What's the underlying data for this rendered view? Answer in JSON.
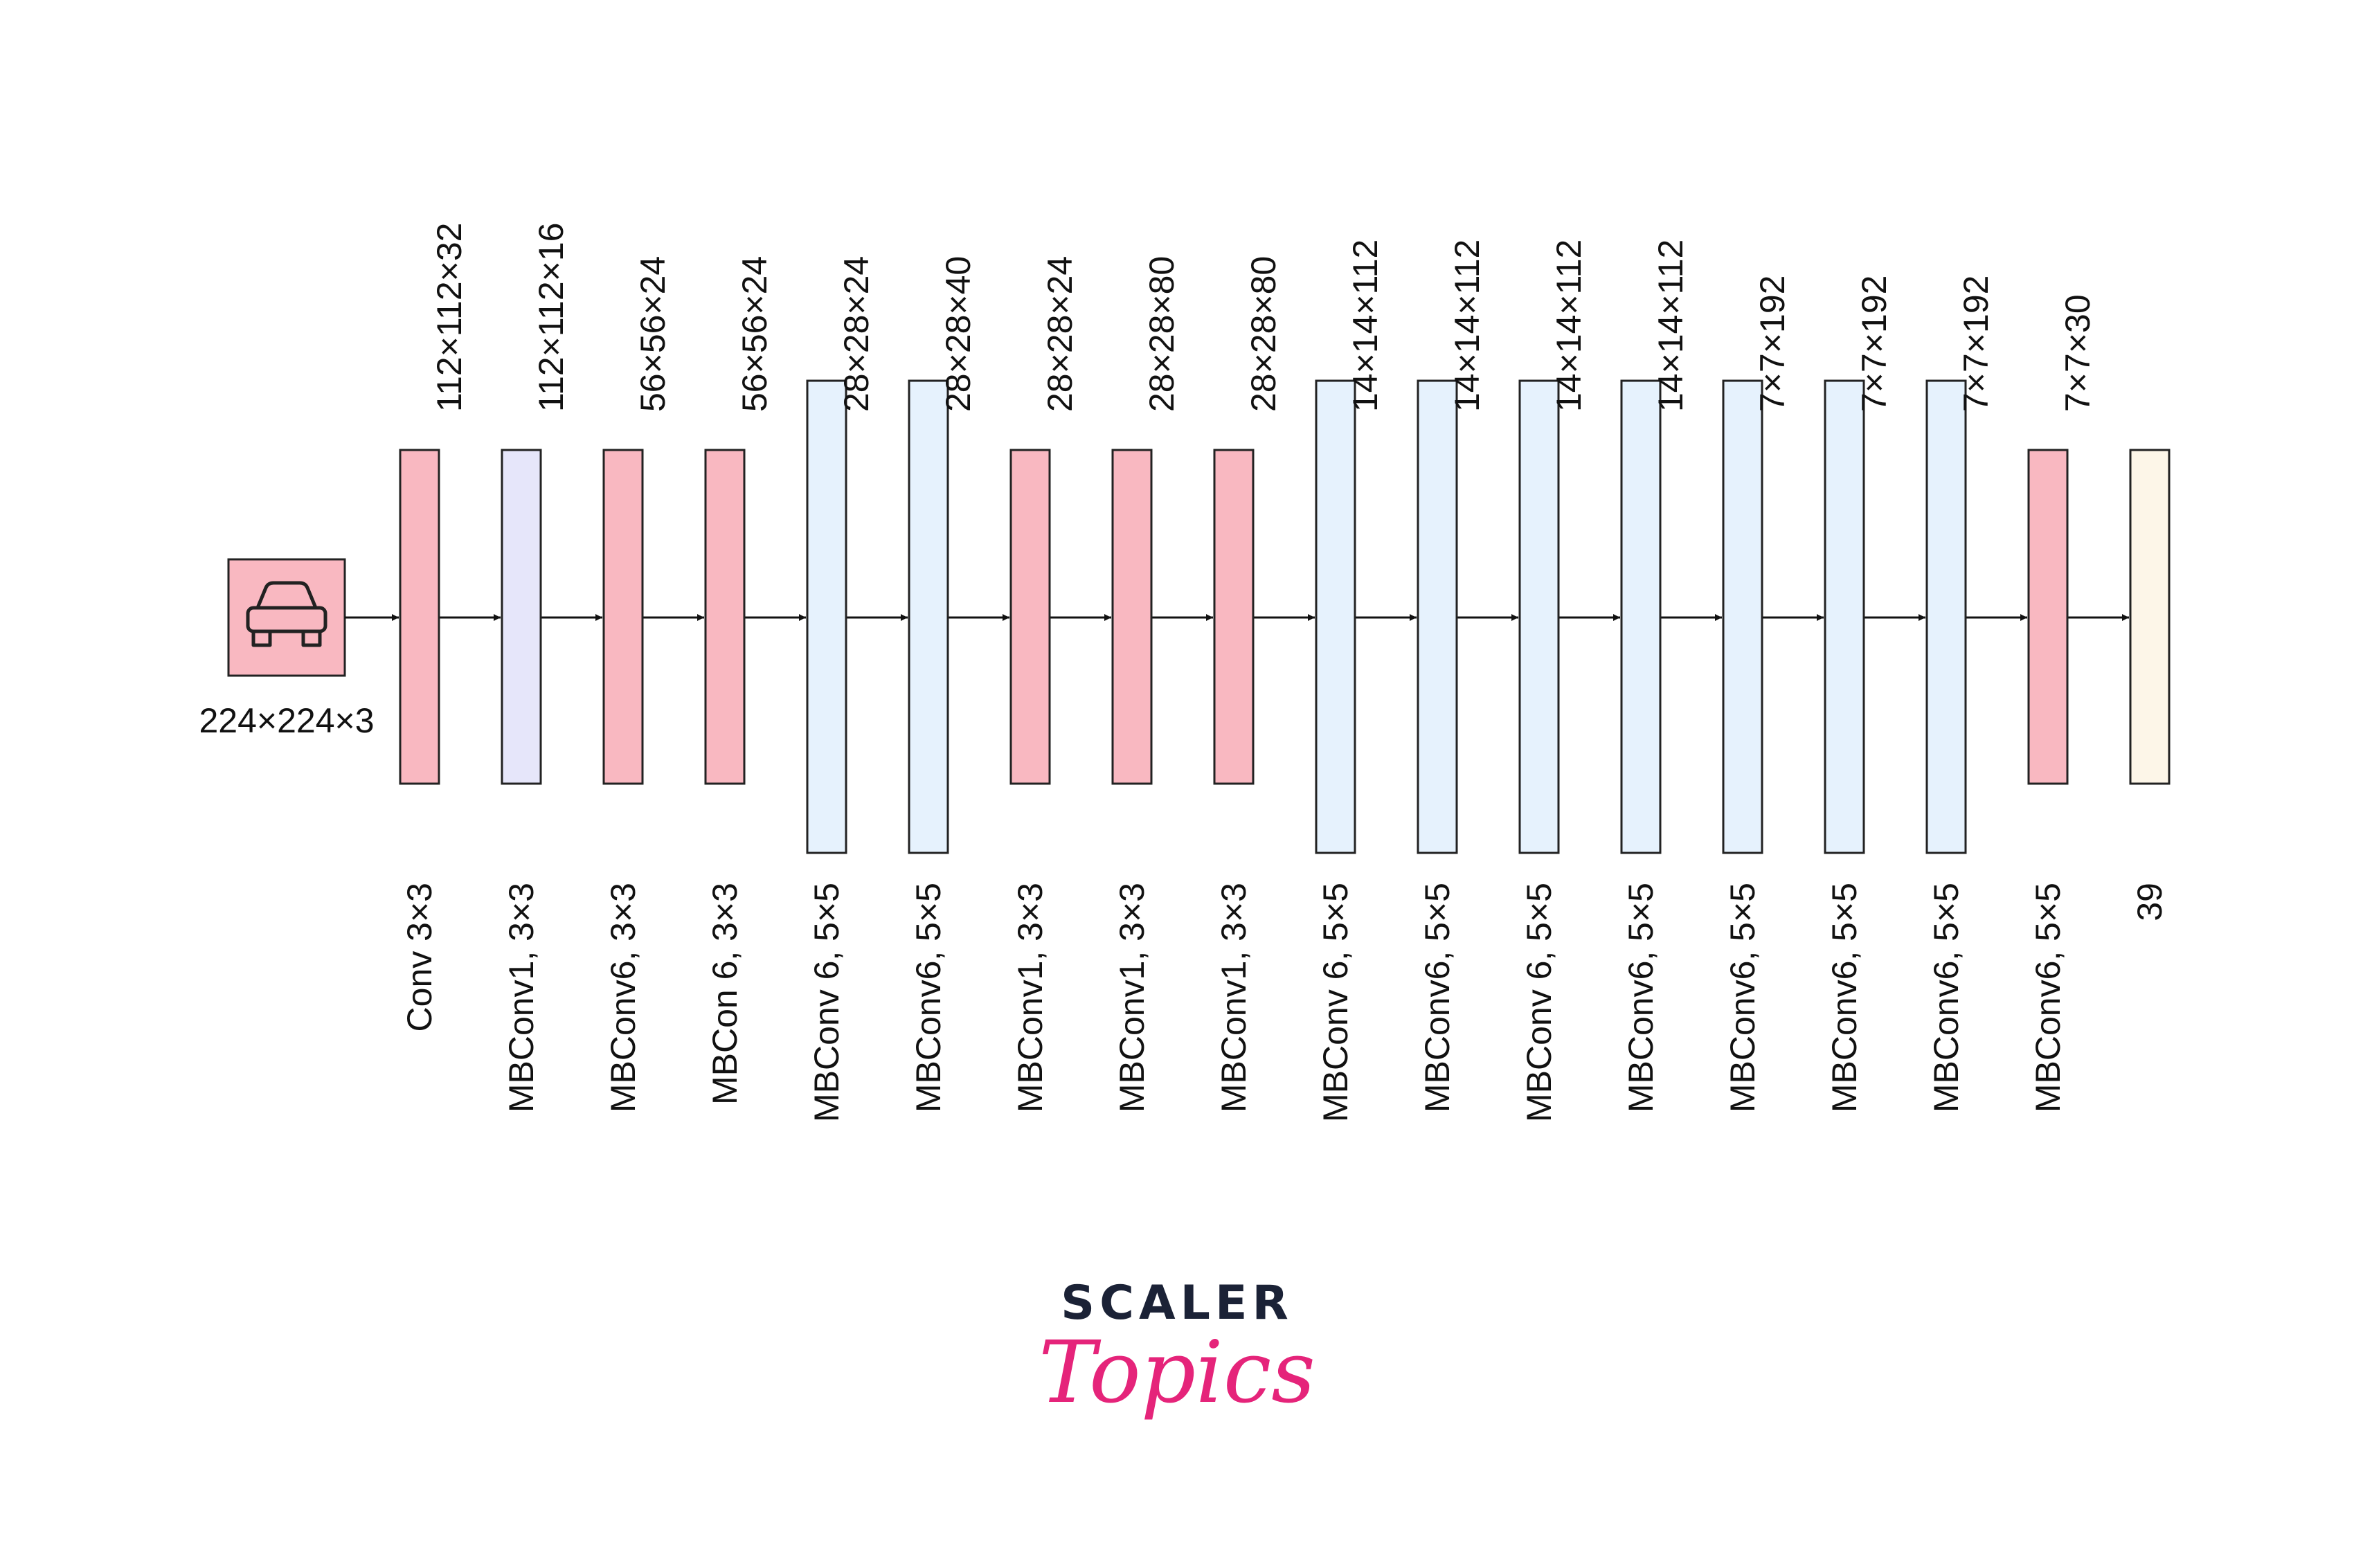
{
  "input": {
    "label": "224×224×3",
    "icon": "car-icon",
    "color": "#F9B8C1"
  },
  "colors": {
    "pink": "#F9B8C1",
    "lavender": "#E6E6FA",
    "lightblue": "#E6F2FD",
    "cream": "#FDF6E8",
    "stroke": "#222222",
    "logo_dark": "#1B2236",
    "logo_accent": "#E5247A"
  },
  "layers": [
    {
      "top": "112×112×32",
      "bottom": "Conv 3×3",
      "color": "pink",
      "size": "medium"
    },
    {
      "top": "112×112×16",
      "bottom": "MBConv1, 3×3",
      "color": "lavender",
      "size": "medium"
    },
    {
      "top": "56×56×24",
      "bottom": "MBConv6, 3×3",
      "color": "pink",
      "size": "medium"
    },
    {
      "top": "56×56×24",
      "bottom": "MBCon 6, 3×3",
      "color": "pink",
      "size": "medium"
    },
    {
      "top": "28×28×24",
      "bottom": "MBConv 6, 5×5",
      "color": "lightblue",
      "size": "tall"
    },
    {
      "top": "28×28×40",
      "bottom": "MBConv6, 5×5",
      "color": "lightblue",
      "size": "tall"
    },
    {
      "top": "28×28×24",
      "bottom": "MBConv1, 3×3",
      "color": "pink",
      "size": "medium"
    },
    {
      "top": "28×28×80",
      "bottom": "MBConv1, 3×3",
      "color": "pink",
      "size": "medium"
    },
    {
      "top": "28×28×80",
      "bottom": "MBConv1, 3×3",
      "color": "pink",
      "size": "medium"
    },
    {
      "top": "14×14×112",
      "bottom": "MBConv 6, 5×5",
      "color": "lightblue",
      "size": "tall"
    },
    {
      "top": "14×14×112",
      "bottom": "MBConv6, 5×5",
      "color": "lightblue",
      "size": "tall"
    },
    {
      "top": "14×14×112",
      "bottom": "MBConv 6, 5×5",
      "color": "lightblue",
      "size": "tall"
    },
    {
      "top": "14×14×112",
      "bottom": "MBConv6, 5×5",
      "color": "lightblue",
      "size": "tall"
    },
    {
      "top": "7×7×192",
      "bottom": "MBConv6, 5×5",
      "color": "lightblue",
      "size": "tall"
    },
    {
      "top": "7×7×192",
      "bottom": "MBConv6, 5×5",
      "color": "lightblue",
      "size": "tall"
    },
    {
      "top": "7×7×192",
      "bottom": "MBConv6, 5×5",
      "color": "lightblue",
      "size": "tall"
    },
    {
      "top": "7×7×30",
      "bottom": "MBConv6, 5×5",
      "color": "pink",
      "size": "medium"
    },
    {
      "top": "",
      "bottom": "39",
      "color": "cream",
      "size": "medium"
    }
  ],
  "logo": {
    "main": "SCALER",
    "sub": "Topics"
  }
}
